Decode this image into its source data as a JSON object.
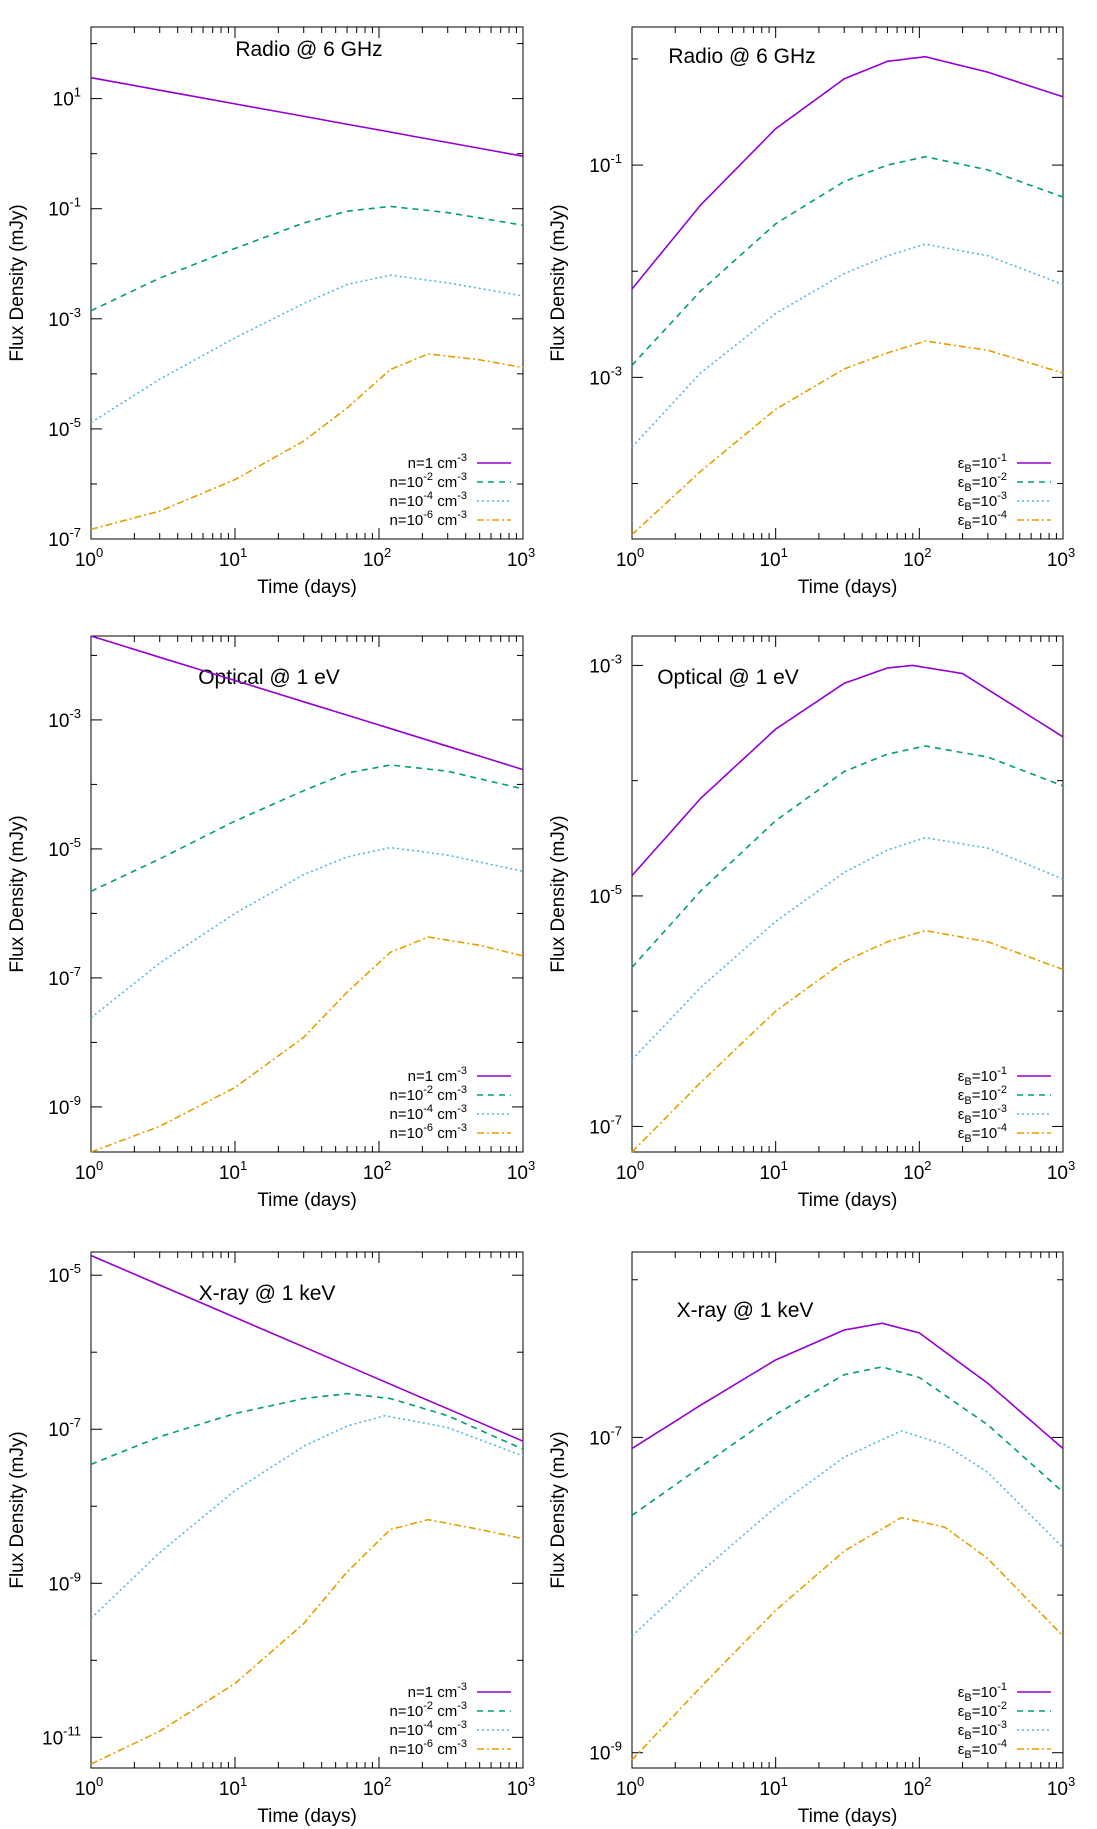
{
  "colors": {
    "series": [
      "#9400d3",
      "#009e73",
      "#56b4e9",
      "#e69f00"
    ],
    "axis": "#000000",
    "background": "#ffffff"
  },
  "dash": [
    "",
    "6,5",
    "2,3",
    "7,3,2,3"
  ],
  "chart_data": [
    {
      "type": "line",
      "title": "Radio @ 6 GHz",
      "xlabel": "Time (days)",
      "ylabel": "Flux Density (mJy)",
      "xscale": "log",
      "yscale": "log",
      "xlim": [
        1,
        1000
      ],
      "ylim": [
        1e-07,
        200
      ],
      "xticks": [
        {
          "v": 1,
          "base": "10",
          "exp": "0"
        },
        {
          "v": 10,
          "base": "10",
          "exp": "1"
        },
        {
          "v": 100,
          "base": "10",
          "exp": "2"
        },
        {
          "v": 1000,
          "base": "10",
          "exp": "3"
        }
      ],
      "yticks": [
        {
          "v": 1e-07,
          "base": "10",
          "exp": "-7"
        },
        {
          "v": 1e-05,
          "base": "10",
          "exp": "-5"
        },
        {
          "v": 0.001,
          "base": "10",
          "exp": "-3"
        },
        {
          "v": 0.1,
          "base": "10",
          "exp": "-1"
        },
        {
          "v": 10,
          "base": "10",
          "exp": "1"
        }
      ],
      "legend_position": "bottom-right",
      "series": [
        {
          "name": {
            "base": "n=1 cm",
            "sup": "-3",
            "tail": ""
          },
          "x": [
            1,
            1000
          ],
          "y": [
            24,
            0.9
          ]
        },
        {
          "name": {
            "base": "n=10",
            "sup": "-2",
            "tail": " cm⁻³"
          },
          "x": [
            1,
            3,
            10,
            30,
            60,
            120,
            300,
            1000
          ],
          "y": [
            0.0014,
            0.0055,
            0.019,
            0.055,
            0.09,
            0.11,
            0.085,
            0.05
          ]
        },
        {
          "name": {
            "base": "n=10",
            "sup": "-4",
            "tail": " cm⁻³"
          },
          "x": [
            1,
            3,
            10,
            30,
            60,
            120,
            300,
            1000
          ],
          "y": [
            1.3e-05,
            8e-05,
            0.00045,
            0.0019,
            0.0042,
            0.0062,
            0.0045,
            0.0026
          ]
        },
        {
          "name": {
            "base": "n=10",
            "sup": "-6",
            "tail": " cm⁻³"
          },
          "x": [
            1,
            3,
            10,
            30,
            60,
            120,
            220,
            500,
            1000
          ],
          "y": [
            1.5e-07,
            3.2e-07,
            1.2e-06,
            6e-06,
            2.4e-05,
            0.00012,
            0.00023,
            0.00018,
            0.00013
          ]
        }
      ]
    },
    {
      "type": "line",
      "title": "Radio @ 6 GHz",
      "xlabel": "Time (days)",
      "ylabel": "Flux Density (mJy)",
      "xscale": "log",
      "yscale": "log",
      "xlim": [
        1,
        1000
      ],
      "ylim": [
        3e-05,
        2
      ],
      "xticks": [
        {
          "v": 1,
          "base": "10",
          "exp": "0"
        },
        {
          "v": 10,
          "base": "10",
          "exp": "1"
        },
        {
          "v": 100,
          "base": "10",
          "exp": "2"
        },
        {
          "v": 1000,
          "base": "10",
          "exp": "3"
        }
      ],
      "yticks": [
        {
          "v": 0.001,
          "base": "10",
          "exp": "-3"
        },
        {
          "v": 0.1,
          "base": "10",
          "exp": "-1"
        }
      ],
      "legend_position": "bottom-right",
      "series": [
        {
          "name": {
            "base": "ε",
            "sub": "B",
            "mid": "=10",
            "sup": "-1"
          },
          "x": [
            1,
            3,
            10,
            30,
            60,
            110,
            300,
            1000
          ],
          "y": [
            0.0068,
            0.042,
            0.22,
            0.65,
            0.95,
            1.05,
            0.75,
            0.44
          ]
        },
        {
          "name": {
            "base": "ε",
            "sub": "B",
            "mid": "=10",
            "sup": "-2"
          },
          "x": [
            1,
            3,
            10,
            30,
            60,
            110,
            300,
            1000
          ],
          "y": [
            0.0013,
            0.0065,
            0.028,
            0.07,
            0.1,
            0.12,
            0.09,
            0.05
          ]
        },
        {
          "name": {
            "base": "ε",
            "sub": "B",
            "mid": "=10",
            "sup": "-3"
          },
          "x": [
            1,
            3,
            10,
            30,
            60,
            110,
            300,
            1000
          ],
          "y": [
            0.00022,
            0.0011,
            0.004,
            0.0095,
            0.014,
            0.018,
            0.014,
            0.0075
          ]
        },
        {
          "name": {
            "base": "ε",
            "sub": "B",
            "mid": "=10",
            "sup": "-4"
          },
          "x": [
            1,
            3,
            10,
            30,
            60,
            110,
            300,
            1000
          ],
          "y": [
            3.3e-05,
            0.00013,
            0.0005,
            0.0012,
            0.0017,
            0.0022,
            0.0018,
            0.0011
          ]
        }
      ]
    },
    {
      "type": "line",
      "title": "Optical @ 1 eV",
      "xlabel": "Time (days)",
      "ylabel": "Flux Density (mJy)",
      "xscale": "log",
      "yscale": "log",
      "xlim": [
        1,
        1000
      ],
      "ylim": [
        2e-10,
        0.02
      ],
      "xticks": [
        {
          "v": 1,
          "base": "10",
          "exp": "0"
        },
        {
          "v": 10,
          "base": "10",
          "exp": "1"
        },
        {
          "v": 100,
          "base": "10",
          "exp": "2"
        },
        {
          "v": 1000,
          "base": "10",
          "exp": "3"
        }
      ],
      "yticks": [
        {
          "v": 1e-09,
          "base": "10",
          "exp": "-9"
        },
        {
          "v": 1e-07,
          "base": "10",
          "exp": "-7"
        },
        {
          "v": 1e-05,
          "base": "10",
          "exp": "-5"
        },
        {
          "v": 0.001,
          "base": "10",
          "exp": "-3"
        }
      ],
      "legend_position": "bottom-right",
      "series": [
        {
          "name": {
            "base": "n=1 cm",
            "sup": "-3",
            "tail": ""
          },
          "x": [
            1,
            1000
          ],
          "y": [
            0.02,
            0.00017
          ]
        },
        {
          "name": {
            "base": "n=10",
            "sup": "-2",
            "tail": " cm⁻³"
          },
          "x": [
            1,
            3,
            10,
            30,
            60,
            120,
            300,
            1000
          ],
          "y": [
            2.2e-06,
            7e-06,
            2.7e-05,
            8e-05,
            0.00015,
            0.0002,
            0.00016,
            8.5e-05
          ]
        },
        {
          "name": {
            "base": "n=10",
            "sup": "-4",
            "tail": " cm⁻³"
          },
          "x": [
            1,
            3,
            10,
            30,
            60,
            120,
            300,
            1000
          ],
          "y": [
            2.4e-08,
            1.7e-07,
            1e-06,
            4e-06,
            7.5e-06,
            1.05e-05,
            8e-06,
            4.5e-06
          ]
        },
        {
          "name": {
            "base": "n=10",
            "sup": "-6",
            "tail": " cm⁻³"
          },
          "x": [
            1,
            3,
            10,
            30,
            60,
            120,
            220,
            500,
            1000
          ],
          "y": [
            2e-10,
            5e-10,
            2e-09,
            1.2e-08,
            6e-08,
            2.5e-07,
            4.3e-07,
            3.2e-07,
            2.2e-07
          ]
        }
      ]
    },
    {
      "type": "line",
      "title": "Optical @ 1 eV",
      "xlabel": "Time (days)",
      "ylabel": "Flux Density (mJy)",
      "xscale": "log",
      "yscale": "log",
      "xlim": [
        1,
        1000
      ],
      "ylim": [
        6e-08,
        0.0018
      ],
      "xticks": [
        {
          "v": 1,
          "base": "10",
          "exp": "0"
        },
        {
          "v": 10,
          "base": "10",
          "exp": "1"
        },
        {
          "v": 100,
          "base": "10",
          "exp": "2"
        },
        {
          "v": 1000,
          "base": "10",
          "exp": "3"
        }
      ],
      "yticks": [
        {
          "v": 1e-07,
          "base": "10",
          "exp": "-7"
        },
        {
          "v": 1e-05,
          "base": "10",
          "exp": "-5"
        },
        {
          "v": 0.001,
          "base": "10",
          "exp": "-3"
        }
      ],
      "legend_position": "bottom-right",
      "series": [
        {
          "name": {
            "base": "ε",
            "sub": "B",
            "mid": "=10",
            "sup": "-1"
          },
          "x": [
            1,
            3,
            10,
            30,
            60,
            90,
            200,
            1000
          ],
          "y": [
            1.5e-05,
            7e-05,
            0.00028,
            0.0007,
            0.00095,
            0.001,
            0.00085,
            0.00024
          ]
        },
        {
          "name": {
            "base": "ε",
            "sub": "B",
            "mid": "=10",
            "sup": "-2"
          },
          "x": [
            1,
            3,
            10,
            30,
            60,
            110,
            300,
            1000
          ],
          "y": [
            2.4e-06,
            1.1e-05,
            4.5e-05,
            0.00012,
            0.00017,
            0.0002,
            0.00016,
            9e-05
          ]
        },
        {
          "name": {
            "base": "ε",
            "sub": "B",
            "mid": "=10",
            "sup": "-3"
          },
          "x": [
            1,
            3,
            10,
            30,
            60,
            110,
            300,
            1000
          ],
          "y": [
            3.8e-07,
            1.6e-06,
            6e-06,
            1.6e-05,
            2.5e-05,
            3.2e-05,
            2.6e-05,
            1.4e-05
          ]
        },
        {
          "name": {
            "base": "ε",
            "sub": "B",
            "mid": "=10",
            "sup": "-4"
          },
          "x": [
            1,
            3,
            10,
            30,
            60,
            110,
            300,
            1000
          ],
          "y": [
            6e-08,
            2.4e-07,
            1e-06,
            2.7e-06,
            4e-06,
            5e-06,
            4e-06,
            2.3e-06
          ]
        }
      ]
    },
    {
      "type": "line",
      "title": "X-ray @ 1 keV",
      "xlabel": "Time (days)",
      "ylabel": "Flux Density (mJy)",
      "xscale": "log",
      "yscale": "log",
      "xlim": [
        1,
        1000
      ],
      "ylim": [
        4e-12,
        2e-05
      ],
      "xticks": [
        {
          "v": 1,
          "base": "10",
          "exp": "0"
        },
        {
          "v": 10,
          "base": "10",
          "exp": "1"
        },
        {
          "v": 100,
          "base": "10",
          "exp": "2"
        },
        {
          "v": 1000,
          "base": "10",
          "exp": "3"
        }
      ],
      "yticks": [
        {
          "v": 1e-11,
          "base": "10",
          "exp": "-11"
        },
        {
          "v": 1e-09,
          "base": "10",
          "exp": "-9"
        },
        {
          "v": 1e-07,
          "base": "10",
          "exp": "-7"
        },
        {
          "v": 1e-05,
          "base": "10",
          "exp": "-5"
        }
      ],
      "legend_position": "bottom-right",
      "series": [
        {
          "name": {
            "base": "n=1 cm",
            "sup": "-3",
            "tail": ""
          },
          "x": [
            1,
            1000
          ],
          "y": [
            1.8e-05,
            7e-08
          ]
        },
        {
          "name": {
            "base": "n=10",
            "sup": "-2",
            "tail": " cm⁻³"
          },
          "x": [
            1,
            3,
            10,
            30,
            60,
            120,
            300,
            1000
          ],
          "y": [
            3.5e-08,
            8e-08,
            1.6e-07,
            2.5e-07,
            2.9e-07,
            2.5e-07,
            1.5e-07,
            5.5e-08
          ]
        },
        {
          "name": {
            "base": "n=10",
            "sup": "-4",
            "tail": " cm⁻³"
          },
          "x": [
            1,
            3,
            10,
            30,
            60,
            110,
            300,
            1000
          ],
          "y": [
            3.5e-10,
            2.5e-09,
            1.6e-08,
            6e-08,
            1.1e-07,
            1.5e-07,
            1.05e-07,
            4.5e-08
          ]
        },
        {
          "name": {
            "base": "n=10",
            "sup": "-6",
            "tail": " cm⁻³"
          },
          "x": [
            1,
            3,
            10,
            30,
            60,
            120,
            220,
            500,
            1000
          ],
          "y": [
            4.5e-12,
            1.2e-11,
            5e-11,
            3e-10,
            1.4e-09,
            5e-09,
            6.7e-09,
            5e-09,
            3.8e-09
          ]
        }
      ]
    },
    {
      "type": "line",
      "title": "X-ray @ 1 keV",
      "xlabel": "Time (days)",
      "ylabel": "Flux Density (mJy)",
      "xscale": "log",
      "yscale": "log",
      "xlim": [
        1,
        1000
      ],
      "ylim": [
        8e-10,
        1.5e-06
      ],
      "xticks": [
        {
          "v": 1,
          "base": "10",
          "exp": "0"
        },
        {
          "v": 10,
          "base": "10",
          "exp": "1"
        },
        {
          "v": 100,
          "base": "10",
          "exp": "2"
        },
        {
          "v": 1000,
          "base": "10",
          "exp": "3"
        }
      ],
      "yticks": [
        {
          "v": 1e-09,
          "base": "10",
          "exp": "-9"
        },
        {
          "v": 1e-07,
          "base": "10",
          "exp": "-7"
        }
      ],
      "legend_position": "bottom-right",
      "series": [
        {
          "name": {
            "base": "ε",
            "sub": "B",
            "mid": "=10",
            "sup": "-1"
          },
          "x": [
            1,
            3,
            10,
            30,
            55,
            100,
            300,
            1000
          ],
          "y": [
            8.5e-08,
            1.6e-07,
            3.1e-07,
            4.8e-07,
            5.3e-07,
            4.6e-07,
            2.2e-07,
            8.5e-08
          ]
        },
        {
          "name": {
            "base": "ε",
            "sub": "B",
            "mid": "=10",
            "sup": "-2"
          },
          "x": [
            1,
            3,
            10,
            30,
            55,
            100,
            300,
            1000
          ],
          "y": [
            3.2e-08,
            6.5e-08,
            1.4e-07,
            2.5e-07,
            2.8e-07,
            2.4e-07,
            1.2e-07,
            4.5e-08
          ]
        },
        {
          "name": {
            "base": "ε",
            "sub": "B",
            "mid": "=10",
            "sup": "-3"
          },
          "x": [
            1,
            3,
            10,
            30,
            75,
            150,
            300,
            1000
          ],
          "y": [
            5.5e-09,
            1.4e-08,
            3.6e-08,
            7.5e-08,
            1.1e-07,
            9e-08,
            6e-08,
            2e-08
          ]
        },
        {
          "name": {
            "base": "ε",
            "sub": "B",
            "mid": "=10",
            "sup": "-4"
          },
          "x": [
            1,
            3,
            10,
            30,
            75,
            150,
            300,
            1000
          ],
          "y": [
            9e-10,
            2.6e-09,
            8e-09,
            1.9e-08,
            3.1e-08,
            2.7e-08,
            1.7e-08,
            5.5e-09
          ]
        }
      ]
    }
  ]
}
